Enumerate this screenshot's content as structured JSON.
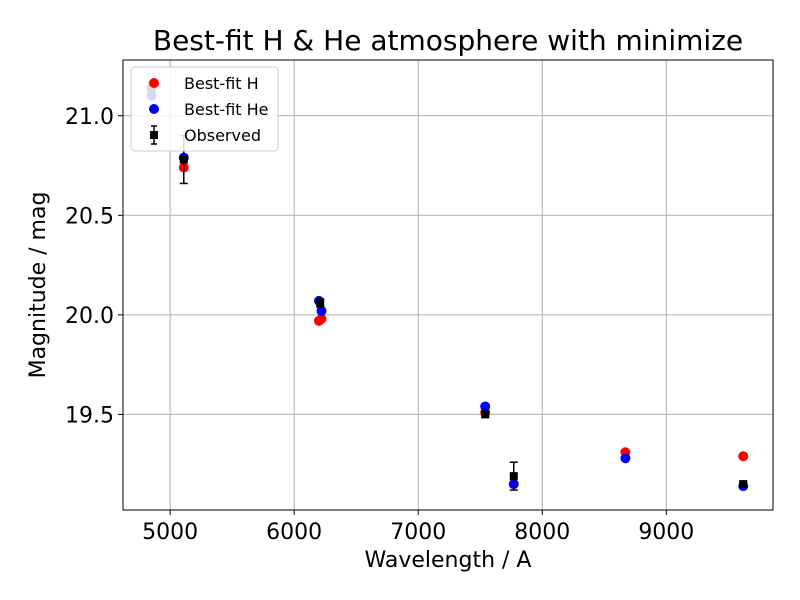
{
  "chart_data": {
    "type": "scatter",
    "title": "Best-fit H & He atmosphere with minimize",
    "xlabel": "Wavelength / A",
    "ylabel": "Magnitude / mag",
    "xlim": [
      4620,
      9860
    ],
    "ylim": [
      21.28,
      19.02
    ],
    "y_inverted": true,
    "grid": true,
    "legend_position": "top-left",
    "x_ticks": [
      5000,
      6000,
      7000,
      8000,
      9000
    ],
    "x_tick_labels": [
      "5000",
      "6000",
      "7000",
      "8000",
      "9000"
    ],
    "y_ticks": [
      19.5,
      20.0,
      20.5,
      21.0
    ],
    "y_tick_labels": [
      "19.5",
      "20.0",
      "20.5",
      "21.0"
    ],
    "series": [
      {
        "name": "Best-fit H",
        "marker": "circle",
        "color": "#ff0000",
        "points": [
          {
            "x": 4850,
            "y": 21.14
          },
          {
            "x": 5110,
            "y": 20.74
          },
          {
            "x": 6200,
            "y": 19.97
          },
          {
            "x": 6220,
            "y": 19.98
          },
          {
            "x": 7540,
            "y": 19.51
          },
          {
            "x": 7770,
            "y": 19.15
          },
          {
            "x": 8670,
            "y": 19.31
          },
          {
            "x": 9620,
            "y": 19.29
          }
        ]
      },
      {
        "name": "Best-fit He",
        "marker": "circle",
        "color": "#0000ff",
        "points": [
          {
            "x": 4850,
            "y": 21.1
          },
          {
            "x": 5110,
            "y": 20.79
          },
          {
            "x": 6200,
            "y": 20.07
          },
          {
            "x": 6220,
            "y": 20.02
          },
          {
            "x": 7540,
            "y": 19.54
          },
          {
            "x": 7770,
            "y": 19.15
          },
          {
            "x": 8670,
            "y": 19.28
          },
          {
            "x": 9620,
            "y": 19.14
          }
        ]
      },
      {
        "name": "Observed",
        "marker": "square",
        "color": "#000000",
        "errorbars": true,
        "points": [
          {
            "x": 4850,
            "y": 21.14,
            "yerr": 0.03
          },
          {
            "x": 5110,
            "y": 20.78,
            "yerr": 0.12
          },
          {
            "x": 6210,
            "y": 20.06,
            "yerr": 0.02
          },
          {
            "x": 7540,
            "y": 19.5,
            "yerr": 0.01
          },
          {
            "x": 7770,
            "y": 19.19,
            "yerr": 0.07
          },
          {
            "x": 9620,
            "y": 19.15,
            "yerr": 0.01
          }
        ]
      }
    ]
  }
}
